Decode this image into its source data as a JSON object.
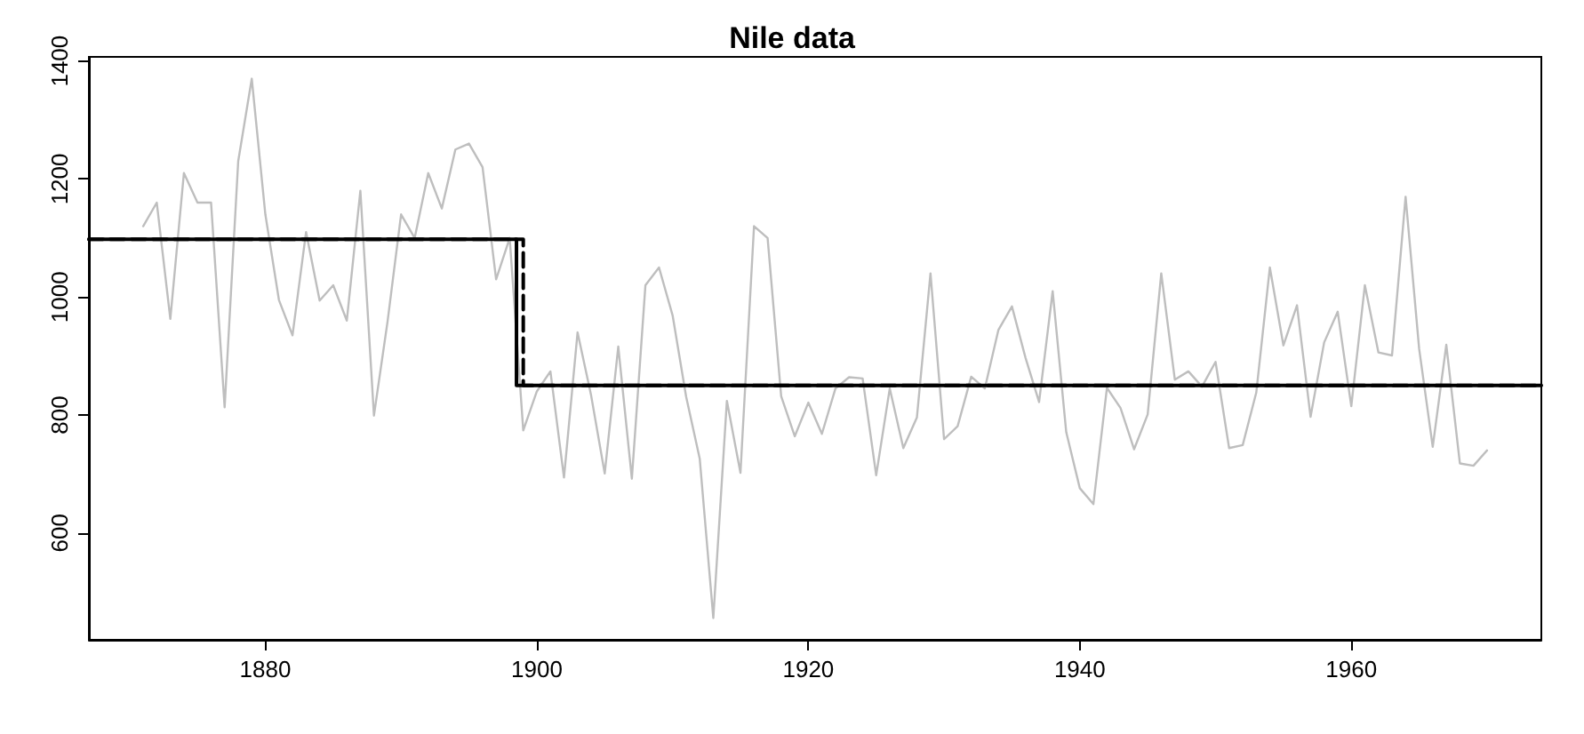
{
  "chart_data": {
    "type": "line",
    "title": "Nile data",
    "grid": false,
    "marker": "none",
    "xlim": [
      1867,
      1974
    ],
    "ylim": [
      419,
      1407
    ],
    "xticks": [
      1880,
      1900,
      1920,
      1940,
      1960
    ],
    "yticks": [
      600,
      800,
      1000,
      1200,
      1400
    ],
    "series": [
      {
        "color": "#bebebe",
        "line_style": "solid",
        "x": [
          1871,
          1872,
          1873,
          1874,
          1875,
          1876,
          1877,
          1878,
          1879,
          1880,
          1881,
          1882,
          1883,
          1884,
          1885,
          1886,
          1887,
          1888,
          1889,
          1890,
          1891,
          1892,
          1893,
          1894,
          1895,
          1896,
          1897,
          1898,
          1899,
          1900,
          1901,
          1902,
          1903,
          1904,
          1905,
          1906,
          1907,
          1908,
          1909,
          1910,
          1911,
          1912,
          1913,
          1914,
          1915,
          1916,
          1917,
          1918,
          1919,
          1920,
          1921,
          1922,
          1923,
          1924,
          1925,
          1926,
          1927,
          1928,
          1929,
          1930,
          1931,
          1932,
          1933,
          1934,
          1935,
          1936,
          1937,
          1938,
          1939,
          1940,
          1941,
          1942,
          1943,
          1944,
          1945,
          1946,
          1947,
          1948,
          1949,
          1950,
          1951,
          1952,
          1953,
          1954,
          1955,
          1956,
          1957,
          1958,
          1959,
          1960,
          1961,
          1962,
          1963,
          1964,
          1965,
          1966,
          1967,
          1968,
          1969,
          1970
        ],
        "values": [
          1120,
          1160,
          963,
          1210,
          1160,
          1160,
          813,
          1230,
          1370,
          1140,
          995,
          935,
          1110,
          994,
          1020,
          960,
          1180,
          799,
          958,
          1140,
          1100,
          1210,
          1150,
          1250,
          1260,
          1220,
          1030,
          1100,
          774,
          840,
          874,
          694,
          940,
          833,
          701,
          916,
          692,
          1020,
          1050,
          969,
          831,
          726,
          456,
          824,
          702,
          1120,
          1100,
          832,
          764,
          821,
          768,
          845,
          864,
          862,
          698,
          845,
          744,
          796,
          1040,
          759,
          781,
          865,
          845,
          944,
          984,
          897,
          822,
          1010,
          771,
          676,
          649,
          846,
          812,
          742,
          801,
          1040,
          860,
          874,
          848,
          890,
          744,
          749,
          838,
          1050,
          918,
          986,
          797,
          923,
          975,
          815,
          1020,
          906,
          901,
          1170,
          912,
          746,
          919,
          718,
          714,
          740
        ]
      },
      {
        "type": "step",
        "color": "#000000",
        "line_style": "dashed",
        "x": [
          1867,
          1899,
          1974
        ],
        "values": [
          1098,
          850,
          850
        ]
      },
      {
        "type": "step",
        "color": "#000000",
        "line_style": "solid",
        "x": [
          1867,
          1898.5,
          1974
        ],
        "values": [
          1098,
          850,
          850
        ]
      }
    ]
  }
}
